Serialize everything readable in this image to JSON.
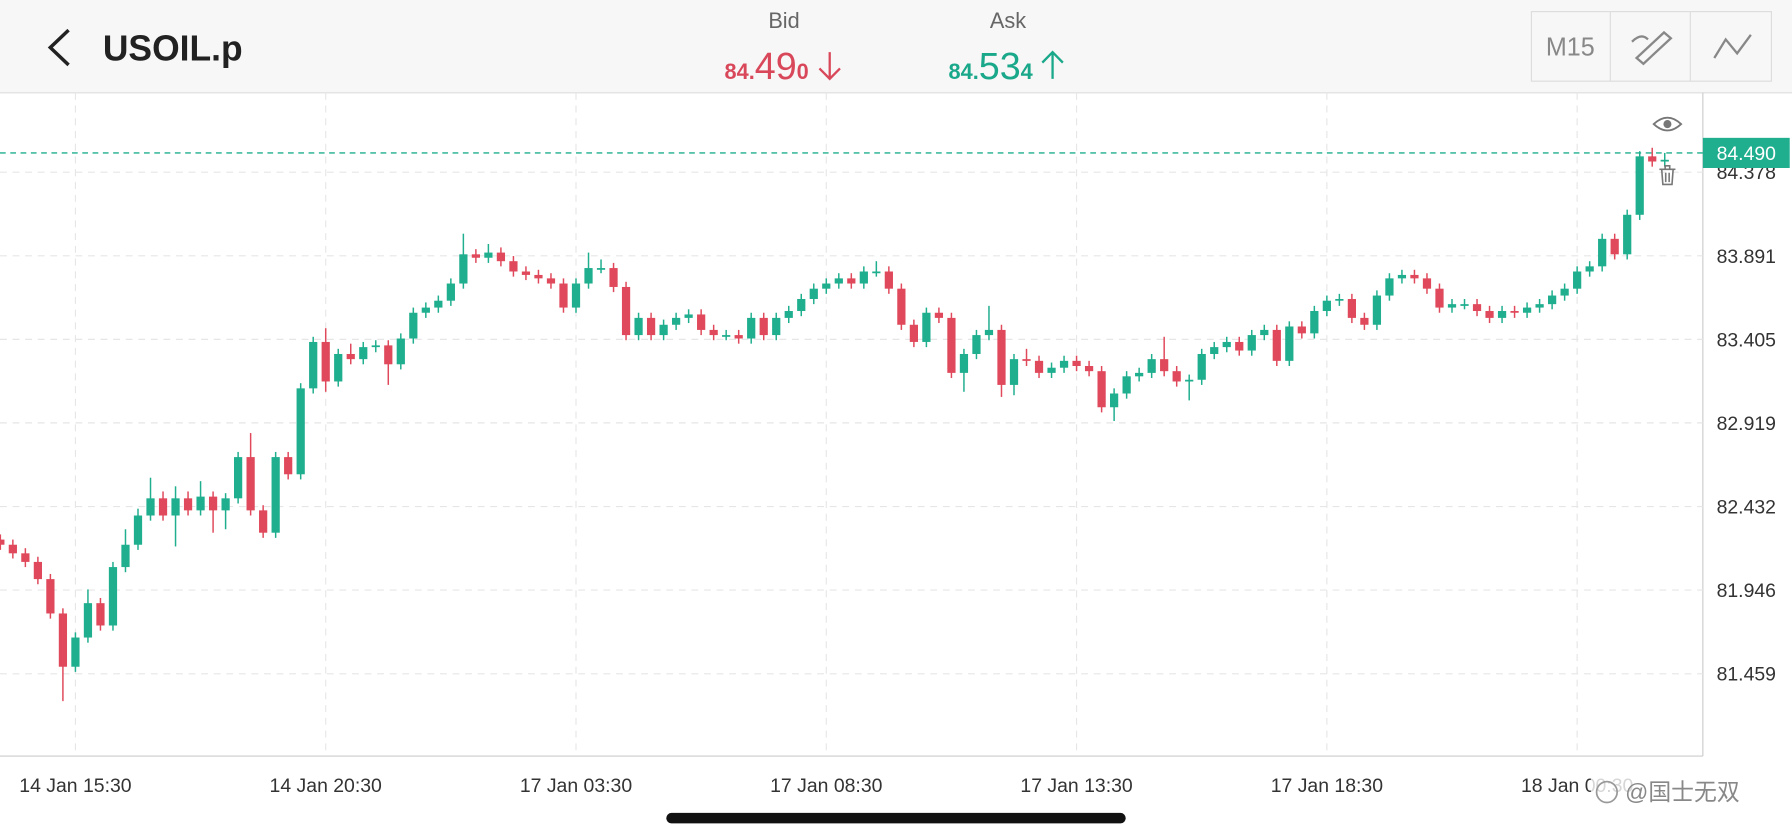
{
  "header": {
    "title": "USOIL.p",
    "bid": {
      "label": "Bid",
      "price_small": "84.",
      "price_big": "49",
      "price_tail": "0"
    },
    "ask": {
      "label": "Ask",
      "price_small": "84.",
      "price_big": "53",
      "price_tail": "4"
    },
    "timeframe": "M15"
  },
  "chart_data": {
    "type": "candlestick",
    "categories": [
      null,
      null,
      null,
      null,
      null,
      null,
      "14 Jan 15:30",
      null,
      null,
      null,
      null,
      null,
      null,
      null,
      null,
      null,
      null,
      null,
      null,
      null,
      null,
      null,
      null,
      null,
      null,
      null,
      "14 Jan 20:30",
      null,
      null,
      null,
      null,
      null,
      null,
      null,
      null,
      null,
      null,
      null,
      null,
      null,
      null,
      null,
      null,
      null,
      null,
      null,
      "17 Jan 03:30",
      null,
      null,
      null,
      null,
      null,
      null,
      null,
      null,
      null,
      null,
      null,
      null,
      null,
      null,
      null,
      null,
      null,
      null,
      null,
      "17 Jan 08:30",
      null,
      null,
      null,
      null,
      null,
      null,
      null,
      null,
      null,
      null,
      null,
      null,
      null,
      null,
      null,
      null,
      null,
      null,
      null,
      "17 Jan 13:30",
      null,
      null,
      null,
      null,
      null,
      null,
      null,
      null,
      null,
      null,
      null,
      null,
      null,
      null,
      null,
      null,
      null,
      null,
      null,
      "17 Jan 18:30",
      null,
      null,
      null,
      null,
      null,
      null,
      null,
      null,
      null,
      null,
      null,
      null,
      null,
      null,
      null,
      null,
      null,
      null,
      null,
      "18 Jan 00:30",
      null,
      null,
      null,
      null,
      null,
      null,
      null
    ],
    "open": [
      82.24,
      82.21,
      82.16,
      82.11,
      82.01,
      81.81,
      81.5,
      81.67,
      81.87,
      81.74,
      82.08,
      82.21,
      82.38,
      82.48,
      82.38,
      82.48,
      82.41,
      82.49,
      82.41,
      82.48,
      82.72,
      82.41,
      82.28,
      82.72,
      82.62,
      83.12,
      83.39,
      83.16,
      83.32,
      83.29,
      83.36,
      83.37,
      83.26,
      83.41,
      83.56,
      83.59,
      83.63,
      83.73,
      83.9,
      83.88,
      83.91,
      83.86,
      83.8,
      83.78,
      83.76,
      83.73,
      83.59,
      83.73,
      83.82,
      83.82,
      83.71,
      83.43,
      83.53,
      83.43,
      83.49,
      83.53,
      83.55,
      83.46,
      83.43,
      83.43,
      83.41,
      83.53,
      83.43,
      83.53,
      83.57,
      83.64,
      83.7,
      83.73,
      83.76,
      83.73,
      83.8,
      83.8,
      83.7,
      83.49,
      83.39,
      83.56,
      83.53,
      83.21,
      83.32,
      83.43,
      83.46,
      83.14,
      83.29,
      83.28,
      83.21,
      83.24,
      83.28,
      83.25,
      83.22,
      83.01,
      83.09,
      83.19,
      83.21,
      83.29,
      83.22,
      83.16,
      83.17,
      83.32,
      83.36,
      83.39,
      83.34,
      83.43,
      83.46,
      83.28,
      83.48,
      83.44,
      83.57,
      83.63,
      83.64,
      83.53,
      83.49,
      83.66,
      83.76,
      83.78,
      83.76,
      83.7,
      83.59,
      83.61,
      83.61,
      83.57,
      83.53,
      83.57,
      83.56,
      83.59,
      83.61,
      83.66,
      83.7,
      83.8,
      83.83,
      83.99,
      83.9,
      84.13,
      84.47,
      84.44
    ],
    "high": [
      82.27,
      82.24,
      82.19,
      82.14,
      82.04,
      81.84,
      81.7,
      81.95,
      81.9,
      82.11,
      82.3,
      82.42,
      82.6,
      82.52,
      82.55,
      82.52,
      82.58,
      82.52,
      82.51,
      82.75,
      82.86,
      82.44,
      82.75,
      82.75,
      83.15,
      83.42,
      83.47,
      83.35,
      83.38,
      83.39,
      83.4,
      83.4,
      83.44,
      83.59,
      83.62,
      83.66,
      83.76,
      84.02,
      83.93,
      83.96,
      83.94,
      83.89,
      83.83,
      83.81,
      83.79,
      83.76,
      83.76,
      83.91,
      83.87,
      83.85,
      83.74,
      83.56,
      83.56,
      83.52,
      83.56,
      83.58,
      83.58,
      83.49,
      83.46,
      83.46,
      83.56,
      83.56,
      83.56,
      83.6,
      83.67,
      83.73,
      83.76,
      83.79,
      83.79,
      83.83,
      83.86,
      83.83,
      83.73,
      83.52,
      83.59,
      83.59,
      83.56,
      83.35,
      83.46,
      83.6,
      83.49,
      83.32,
      83.35,
      83.31,
      83.27,
      83.31,
      83.31,
      83.28,
      83.25,
      83.12,
      83.22,
      83.24,
      83.32,
      83.42,
      83.25,
      83.2,
      83.35,
      83.39,
      83.42,
      83.42,
      83.46,
      83.49,
      83.49,
      83.51,
      83.51,
      83.6,
      83.66,
      83.67,
      83.67,
      83.56,
      83.69,
      83.79,
      83.81,
      83.81,
      83.79,
      83.73,
      83.64,
      83.64,
      83.64,
      83.6,
      83.6,
      83.6,
      83.62,
      83.64,
      83.69,
      83.73,
      83.83,
      83.86,
      84.02,
      84.02,
      84.16,
      84.5,
      84.52,
      84.49
    ],
    "low": [
      82.18,
      82.13,
      82.08,
      81.98,
      81.78,
      81.3,
      81.47,
      81.64,
      81.71,
      81.71,
      82.05,
      82.18,
      82.35,
      82.35,
      82.2,
      82.38,
      82.38,
      82.28,
      82.3,
      82.45,
      82.38,
      82.25,
      82.25,
      82.59,
      82.59,
      83.09,
      83.1,
      83.13,
      83.26,
      83.26,
      83.33,
      83.14,
      83.23,
      83.38,
      83.53,
      83.56,
      83.6,
      83.7,
      83.85,
      83.85,
      83.83,
      83.77,
      83.75,
      83.73,
      83.7,
      83.56,
      83.56,
      83.7,
      83.79,
      83.68,
      83.4,
      83.4,
      83.4,
      83.4,
      83.46,
      83.5,
      83.43,
      83.4,
      83.4,
      83.38,
      83.38,
      83.4,
      83.4,
      83.5,
      83.54,
      83.61,
      83.67,
      83.7,
      83.7,
      83.7,
      83.77,
      83.67,
      83.46,
      83.36,
      83.36,
      83.5,
      83.18,
      83.1,
      83.29,
      83.4,
      83.07,
      83.08,
      83.25,
      83.18,
      83.18,
      83.21,
      83.22,
      83.19,
      82.98,
      82.93,
      83.06,
      83.16,
      83.18,
      83.19,
      83.13,
      83.05,
      83.14,
      83.29,
      83.33,
      83.31,
      83.31,
      83.4,
      83.25,
      83.25,
      83.41,
      83.41,
      83.54,
      83.6,
      83.5,
      83.46,
      83.46,
      83.63,
      83.73,
      83.73,
      83.67,
      83.56,
      83.56,
      83.58,
      83.54,
      83.5,
      83.5,
      83.53,
      83.53,
      83.56,
      83.58,
      83.63,
      83.67,
      83.77,
      83.8,
      83.87,
      83.87,
      84.1,
      84.41,
      84.41
    ],
    "close": [
      82.21,
      82.16,
      82.11,
      82.01,
      81.81,
      81.5,
      81.67,
      81.87,
      81.74,
      82.08,
      82.21,
      82.38,
      82.48,
      82.38,
      82.48,
      82.41,
      82.49,
      82.41,
      82.48,
      82.72,
      82.41,
      82.28,
      82.72,
      82.62,
      83.12,
      83.39,
      83.16,
      83.32,
      83.29,
      83.36,
      83.37,
      83.26,
      83.41,
      83.56,
      83.59,
      83.63,
      83.73,
      83.9,
      83.88,
      83.91,
      83.86,
      83.8,
      83.78,
      83.76,
      83.73,
      83.59,
      83.73,
      83.82,
      83.82,
      83.71,
      83.43,
      83.53,
      83.43,
      83.49,
      83.53,
      83.55,
      83.46,
      83.43,
      83.43,
      83.41,
      83.53,
      83.43,
      83.53,
      83.57,
      83.64,
      83.7,
      83.73,
      83.76,
      83.73,
      83.8,
      83.8,
      83.7,
      83.49,
      83.39,
      83.56,
      83.53,
      83.21,
      83.32,
      83.43,
      83.46,
      83.14,
      83.29,
      83.28,
      83.21,
      83.24,
      83.28,
      83.25,
      83.22,
      83.01,
      83.09,
      83.19,
      83.21,
      83.29,
      83.22,
      83.16,
      83.17,
      83.32,
      83.36,
      83.39,
      83.34,
      83.43,
      83.46,
      83.28,
      83.48,
      83.44,
      83.57,
      83.63,
      83.64,
      83.53,
      83.49,
      83.66,
      83.76,
      83.78,
      83.76,
      83.7,
      83.59,
      83.61,
      83.61,
      83.57,
      83.53,
      83.57,
      83.56,
      83.59,
      83.61,
      83.66,
      83.7,
      83.8,
      83.83,
      83.99,
      83.9,
      84.13,
      84.47,
      84.44,
      84.45
    ],
    "up_color": "#1fae8e",
    "down_color": "#e0495b",
    "ylim": [
      80.98,
      84.84
    ],
    "yticks": [
      81.459,
      81.946,
      82.432,
      82.919,
      83.405,
      83.891,
      84.378
    ],
    "grid": true,
    "price_line": {
      "value": 84.49,
      "label": "84.490"
    }
  },
  "watermark": "@国士无双"
}
